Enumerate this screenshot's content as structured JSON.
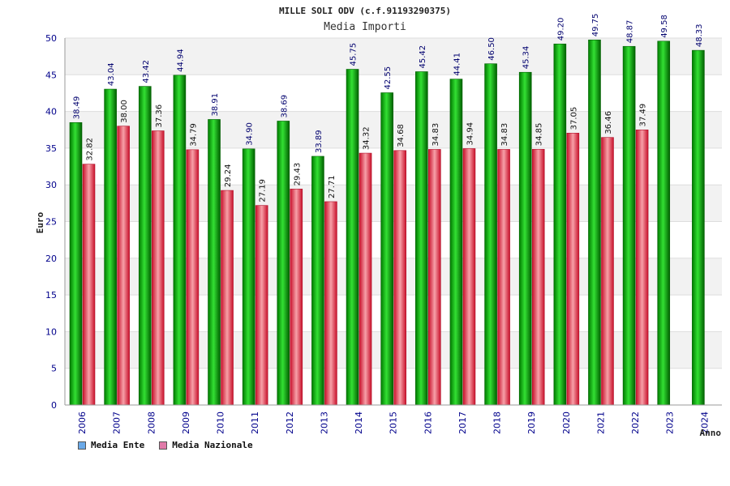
{
  "chart_data": {
    "type": "bar",
    "title": "MILLE SOLI ODV (c.f.91193290375)",
    "subtitle": "Media Importi",
    "ylabel": "Euro",
    "xlabel": "Anno",
    "ylim": [
      0,
      50
    ],
    "yticks": [
      0,
      5,
      10,
      15,
      20,
      25,
      30,
      35,
      40,
      45,
      50
    ],
    "categories": [
      "2006",
      "2007",
      "2008",
      "2009",
      "2010",
      "2011",
      "2012",
      "2013",
      "2014",
      "2015",
      "2016",
      "2017",
      "2018",
      "2019",
      "2020",
      "2021",
      "2022",
      "2023",
      "2024"
    ],
    "series": [
      {
        "name": "Media Ente",
        "color": "#00b000",
        "values": [
          38.49,
          43.04,
          43.42,
          44.94,
          38.91,
          34.9,
          38.69,
          33.89,
          45.75,
          42.55,
          45.42,
          44.41,
          46.5,
          45.34,
          49.2,
          49.75,
          48.87,
          49.58,
          48.33
        ],
        "labels": [
          "38.49",
          "43.04",
          "43.42",
          "44.94",
          "38.91",
          "34.90",
          "38.69",
          "33.89",
          "45.75",
          "42.55",
          "45.42",
          "44.41",
          "46.50",
          "45.34",
          "49.20",
          "49.75",
          "48.87",
          "49.58",
          "48.33"
        ]
      },
      {
        "name": "Media Nazionale",
        "color": "#e8323c",
        "values": [
          32.82,
          38.0,
          37.36,
          34.79,
          29.24,
          27.19,
          29.43,
          27.71,
          34.32,
          34.68,
          34.83,
          34.94,
          34.83,
          34.85,
          37.05,
          36.46,
          37.49,
          null,
          null
        ],
        "labels": [
          "32.82",
          "38.00",
          "37.36",
          "34.79",
          "29.24",
          "27.19",
          "29.43",
          "27.71",
          "34.32",
          "34.68",
          "34.83",
          "34.94",
          "34.83",
          "34.85",
          "37.05",
          "36.46",
          "37.49",
          "",
          ""
        ]
      }
    ],
    "legend": {
      "position": "bottom-left",
      "items": [
        {
          "label": "Media Ente",
          "color": "#6aa9e8"
        },
        {
          "label": "Media Nazionale",
          "color": "#e07aa8"
        }
      ]
    },
    "grid": true
  }
}
